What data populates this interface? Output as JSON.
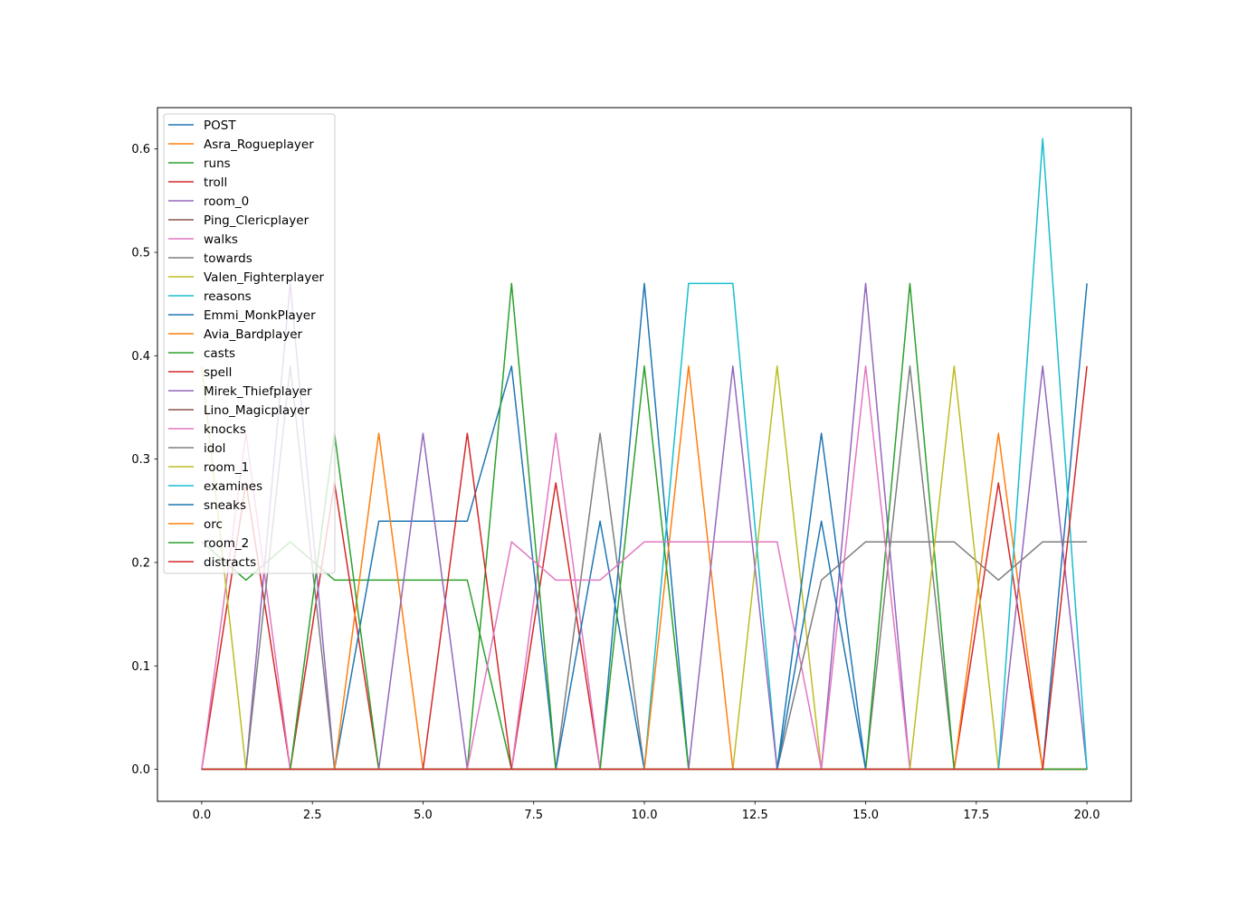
{
  "chart_data": {
    "type": "line",
    "title": "",
    "xlabel": "",
    "ylabel": "",
    "xlim": [
      -1.0,
      21.0
    ],
    "ylim": [
      -0.031,
      0.64
    ],
    "grid": false,
    "legend_position": "upper-left",
    "x_ticks": [
      0.0,
      2.5,
      5.0,
      7.5,
      10.0,
      12.5,
      15.0,
      17.5,
      20.0
    ],
    "x_tick_labels": [
      "0.0",
      "2.5",
      "5.0",
      "7.5",
      "10.0",
      "12.5",
      "15.0",
      "17.5",
      "20.0"
    ],
    "y_ticks": [
      0.0,
      0.1,
      0.2,
      0.3,
      0.4,
      0.5,
      0.6
    ],
    "y_tick_labels": [
      "0.0",
      "0.1",
      "0.2",
      "0.3",
      "0.4",
      "0.5",
      "0.6"
    ],
    "x": [
      0,
      1,
      2,
      3,
      4,
      5,
      6,
      7,
      8,
      9,
      10,
      11,
      12,
      13,
      14,
      15,
      16,
      17,
      18,
      19,
      20
    ],
    "series": [
      {
        "name": "POST",
        "color": "#1f77b4",
        "values": [
          0,
          0,
          0,
          0,
          0,
          0,
          0,
          0,
          0,
          0,
          0.47,
          0,
          0,
          0,
          0,
          0,
          0,
          0,
          0,
          0,
          0.47
        ]
      },
      {
        "name": "Asra_Rogueplayer",
        "color": "#ff7f0e",
        "values": [
          0,
          0,
          0,
          0,
          0,
          0,
          0,
          0,
          0,
          0,
          0,
          0,
          0,
          0,
          0,
          0,
          0,
          0,
          0,
          0,
          0
        ]
      },
      {
        "name": "runs",
        "color": "#2ca02c",
        "values": [
          0.22,
          0.183,
          0.22,
          0.183,
          0.183,
          0.183,
          0.183,
          0,
          0,
          0,
          0,
          0,
          0,
          0,
          0,
          0,
          0,
          0,
          0,
          0,
          0
        ]
      },
      {
        "name": "troll",
        "color": "#d62728",
        "values": [
          0,
          0.277,
          0,
          0.277,
          0,
          0,
          0,
          0,
          0.277,
          0,
          0,
          0,
          0,
          0,
          0,
          0,
          0,
          0,
          0.277,
          0,
          0
        ]
      },
      {
        "name": "room_0",
        "color": "#9467bd",
        "values": [
          0,
          0,
          0.47,
          0,
          0,
          0,
          0,
          0,
          0,
          0,
          0,
          0,
          0,
          0,
          0,
          0.47,
          0,
          0,
          0,
          0,
          0
        ]
      },
      {
        "name": "Ping_Clericplayer",
        "color": "#8c564b",
        "values": [
          0,
          0,
          0,
          0,
          0,
          0,
          0,
          0,
          0,
          0,
          0,
          0,
          0,
          0,
          0,
          0,
          0,
          0,
          0,
          0,
          0
        ]
      },
      {
        "name": "walks",
        "color": "#e377c2",
        "values": [
          0,
          0.325,
          0,
          0,
          0,
          0,
          0,
          0,
          0.325,
          0,
          0,
          0,
          0,
          0,
          0,
          0,
          0,
          0,
          0,
          0,
          0
        ]
      },
      {
        "name": "towards",
        "color": "#7f7f7f",
        "values": [
          0,
          0,
          0.39,
          0,
          0,
          0,
          0,
          0,
          0,
          0.325,
          0,
          0,
          0,
          0,
          0,
          0,
          0.39,
          0,
          0,
          0,
          0
        ]
      },
      {
        "name": "Valen_Fighterplayer",
        "color": "#bcbd22",
        "values": [
          0.39,
          0,
          0,
          0,
          0,
          0,
          0,
          0,
          0,
          0,
          0,
          0,
          0,
          0.39,
          0,
          0,
          0,
          0,
          0,
          0,
          0
        ]
      },
      {
        "name": "reasons",
        "color": "#17becf",
        "values": [
          0,
          0,
          0,
          0,
          0,
          0,
          0,
          0,
          0,
          0,
          0,
          0.47,
          0.47,
          0,
          0,
          0,
          0,
          0,
          0,
          0,
          0
        ]
      },
      {
        "name": "Emmi_MonkPlayer",
        "color": "#1f77b4",
        "values": [
          0,
          0,
          0,
          0,
          0.24,
          0.24,
          0.24,
          0.39,
          0,
          0.24,
          0,
          0,
          0,
          0,
          0.325,
          0,
          0,
          0,
          0,
          0,
          0
        ]
      },
      {
        "name": "Avia_Bardplayer",
        "color": "#ff7f0e",
        "values": [
          0,
          0,
          0,
          0,
          0.325,
          0,
          0,
          0,
          0,
          0,
          0,
          0.39,
          0,
          0,
          0,
          0,
          0,
          0,
          0.325,
          0,
          0
        ]
      },
      {
        "name": "casts",
        "color": "#2ca02c",
        "values": [
          0,
          0,
          0,
          0.325,
          0,
          0,
          0,
          0.47,
          0,
          0,
          0.39,
          0,
          0,
          0,
          0,
          0,
          0.47,
          0,
          0,
          0,
          0
        ]
      },
      {
        "name": "spell",
        "color": "#d62728",
        "values": [
          0,
          0,
          0,
          0,
          0,
          0,
          0.325,
          0,
          0,
          0,
          0,
          0,
          0,
          0,
          0,
          0,
          0,
          0,
          0,
          0,
          0
        ]
      },
      {
        "name": "Mirek_Thiefplayer",
        "color": "#9467bd",
        "values": [
          0,
          0,
          0,
          0,
          0,
          0.325,
          0,
          0,
          0,
          0,
          0,
          0,
          0.39,
          0,
          0,
          0,
          0,
          0,
          0,
          0.39,
          0
        ]
      },
      {
        "name": "Lino_Magicplayer",
        "color": "#8c564b",
        "values": [
          0,
          0,
          0,
          0,
          0,
          0,
          0,
          0,
          0,
          0,
          0,
          0,
          0,
          0,
          0,
          0,
          0,
          0,
          0,
          0,
          0
        ]
      },
      {
        "name": "knocks",
        "color": "#e377c2",
        "values": [
          0,
          0,
          0,
          0,
          0,
          0,
          0,
          0.22,
          0.183,
          0.183,
          0.22,
          0.22,
          0.22,
          0.22,
          0,
          0.39,
          0,
          0,
          0,
          0,
          0
        ]
      },
      {
        "name": "idol",
        "color": "#7f7f7f",
        "values": [
          0,
          0,
          0,
          0,
          0,
          0,
          0,
          0,
          0,
          0,
          0,
          0,
          0,
          0,
          0.183,
          0.22,
          0.22,
          0.22,
          0.183,
          0.22,
          0.22
        ]
      },
      {
        "name": "room_1",
        "color": "#bcbd22",
        "values": [
          0,
          0,
          0,
          0,
          0,
          0,
          0,
          0,
          0,
          0,
          0,
          0,
          0,
          0,
          0,
          0,
          0,
          0.39,
          0,
          0,
          0
        ]
      },
      {
        "name": "examines",
        "color": "#17becf",
        "values": [
          0,
          0,
          0,
          0,
          0,
          0,
          0,
          0,
          0,
          0,
          0,
          0,
          0,
          0,
          0,
          0,
          0,
          0,
          0,
          0.61,
          0
        ]
      },
      {
        "name": "sneaks",
        "color": "#1f77b4",
        "values": [
          0,
          0,
          0,
          0,
          0,
          0,
          0,
          0,
          0,
          0,
          0,
          0,
          0,
          0,
          0.24,
          0,
          0,
          0,
          0,
          0,
          0
        ]
      },
      {
        "name": "orc",
        "color": "#ff7f0e",
        "values": [
          0,
          0,
          0,
          0,
          0,
          0,
          0,
          0,
          0,
          0,
          0,
          0,
          0,
          0,
          0,
          0,
          0,
          0,
          0,
          0,
          0
        ]
      },
      {
        "name": "room_2",
        "color": "#2ca02c",
        "values": [
          0,
          0,
          0,
          0,
          0,
          0,
          0,
          0,
          0,
          0,
          0,
          0,
          0,
          0,
          0,
          0,
          0,
          0,
          0,
          0,
          0
        ]
      },
      {
        "name": "distracts",
        "color": "#d62728",
        "values": [
          0,
          0,
          0,
          0,
          0,
          0,
          0,
          0,
          0,
          0,
          0,
          0,
          0,
          0,
          0,
          0,
          0,
          0,
          0,
          0,
          0.39
        ]
      }
    ]
  }
}
